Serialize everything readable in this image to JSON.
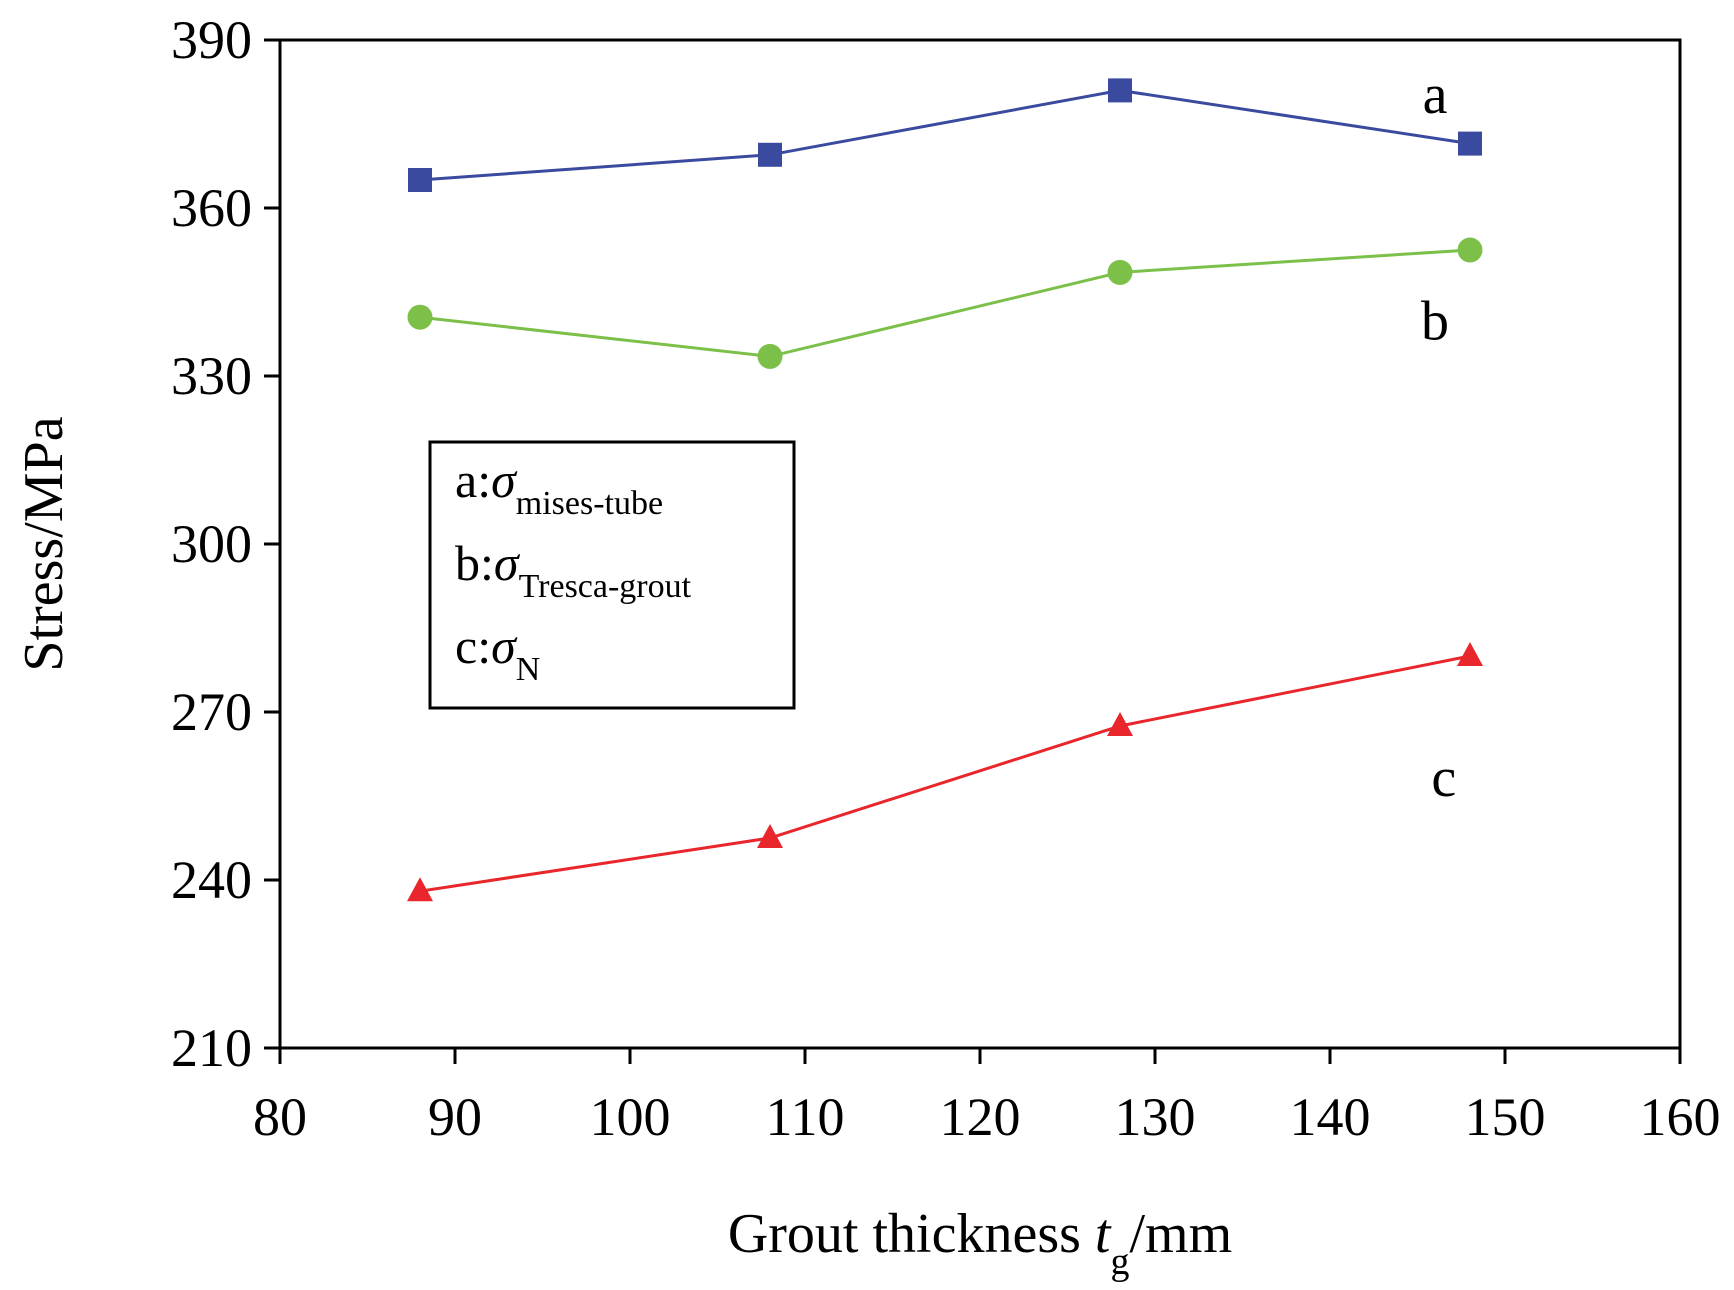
{
  "chart_data": {
    "type": "line",
    "title": "",
    "xlabel": {
      "main": "Grout thickness ",
      "var": "t",
      "sub": "g",
      "unit": "/mm"
    },
    "ylabel": "Stress/MPa",
    "xlim": [
      80,
      160
    ],
    "ylim": [
      210,
      390
    ],
    "xticks": [
      80,
      90,
      100,
      110,
      120,
      130,
      140,
      150,
      160
    ],
    "yticks": [
      210,
      240,
      270,
      300,
      330,
      360,
      390
    ],
    "x": [
      88,
      108,
      128,
      148
    ],
    "series": [
      {
        "name": "a",
        "values": [
          365,
          369.5,
          381,
          371.5
        ],
        "color": "#3a4a9f",
        "marker": "square"
      },
      {
        "name": "b",
        "values": [
          340.5,
          333.5,
          348.5,
          352.5
        ],
        "color": "#7cc04a",
        "marker": "circle"
      },
      {
        "name": "c",
        "values": [
          238,
          247.5,
          267.5,
          280
        ],
        "color": "#e8262b",
        "marker": "triangle"
      }
    ],
    "curve_labels": [
      {
        "text": "a",
        "x": 146,
        "y": 377
      },
      {
        "text": "b",
        "x": 146,
        "y": 336.5
      },
      {
        "text": "c",
        "x": 146.5,
        "y": 255
      }
    ],
    "legend": {
      "position": "center-left",
      "entries": [
        {
          "prefix": "a:",
          "symbol": "σ",
          "sub": "mises-tube"
        },
        {
          "prefix": "b:",
          "symbol": "σ",
          "sub": "Tresca-grout"
        },
        {
          "prefix": "c:",
          "symbol": "σ",
          "sub": "N"
        }
      ]
    },
    "grid": false
  }
}
